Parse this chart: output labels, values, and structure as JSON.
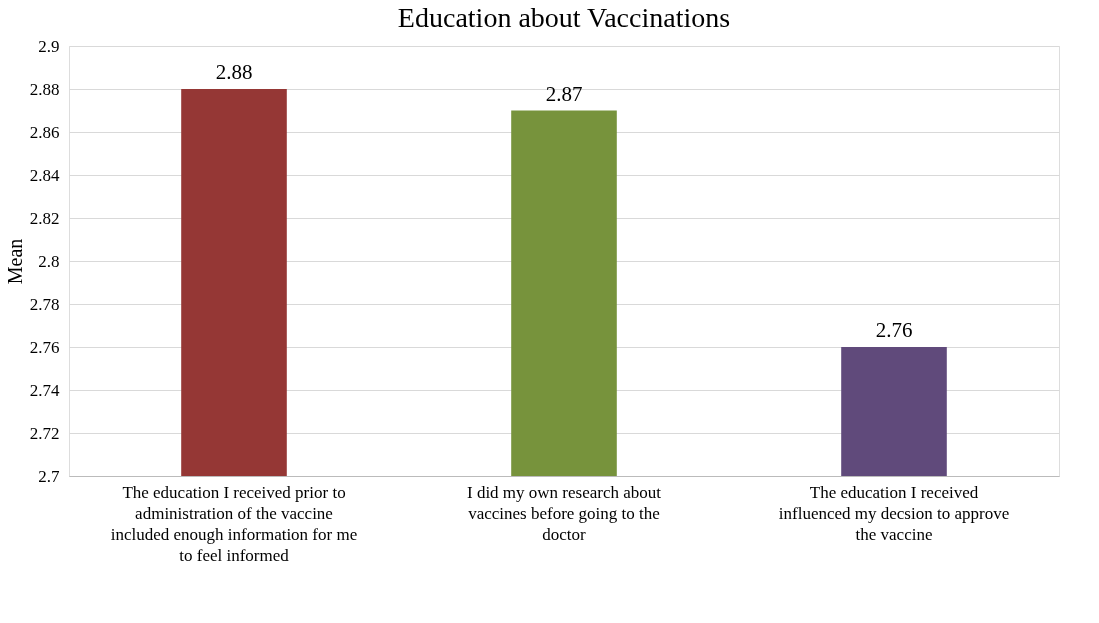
{
  "chart_data": {
    "type": "bar",
    "title": "Education about Vaccinations",
    "ylabel": "Mean",
    "categories": [
      "The education I received prior to administration of the vaccine included enough information for me to feel informed",
      "I did my own research about vaccines before going to the doctor",
      "The education I received influenced my decsion to approve the vaccine"
    ],
    "values": [
      2.88,
      2.87,
      2.76
    ],
    "colors": [
      "#953735",
      "#77933c",
      "#604a7b"
    ],
    "ylim": [
      2.7,
      2.9
    ],
    "yticks": [
      2.7,
      2.72,
      2.74,
      2.76,
      2.78,
      2.8,
      2.82,
      2.84,
      2.86,
      2.88,
      2.9
    ],
    "grid": "y",
    "data_labels": true
  }
}
